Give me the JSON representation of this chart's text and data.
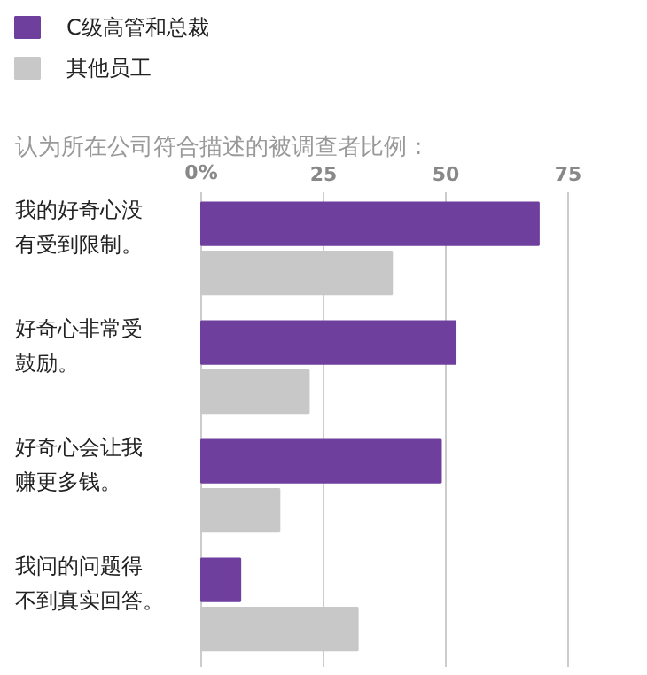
{
  "chart_data": {
    "type": "bar",
    "orientation": "horizontal",
    "title": "认为所在公司符合描述的被调查者比例：",
    "categories": [
      "我的好奇心没有受到限制。",
      "好奇心非常受鼓励。",
      "好奇心会让我赚更多钱。",
      "我问的问题得不到真实回答。"
    ],
    "series": [
      {
        "name": "C级高管和总裁",
        "color": "#6f3f9e",
        "values": [
          69,
          52,
          49,
          8
        ]
      },
      {
        "name": "其他员工",
        "color": "#c8c8c8",
        "values": [
          39,
          22,
          16,
          32
        ]
      }
    ],
    "xlim": [
      0,
      75
    ],
    "xticks": [
      {
        "value": 0,
        "label": "0%"
      },
      25,
      50,
      75
    ],
    "grid": "x",
    "legend": "top left"
  }
}
